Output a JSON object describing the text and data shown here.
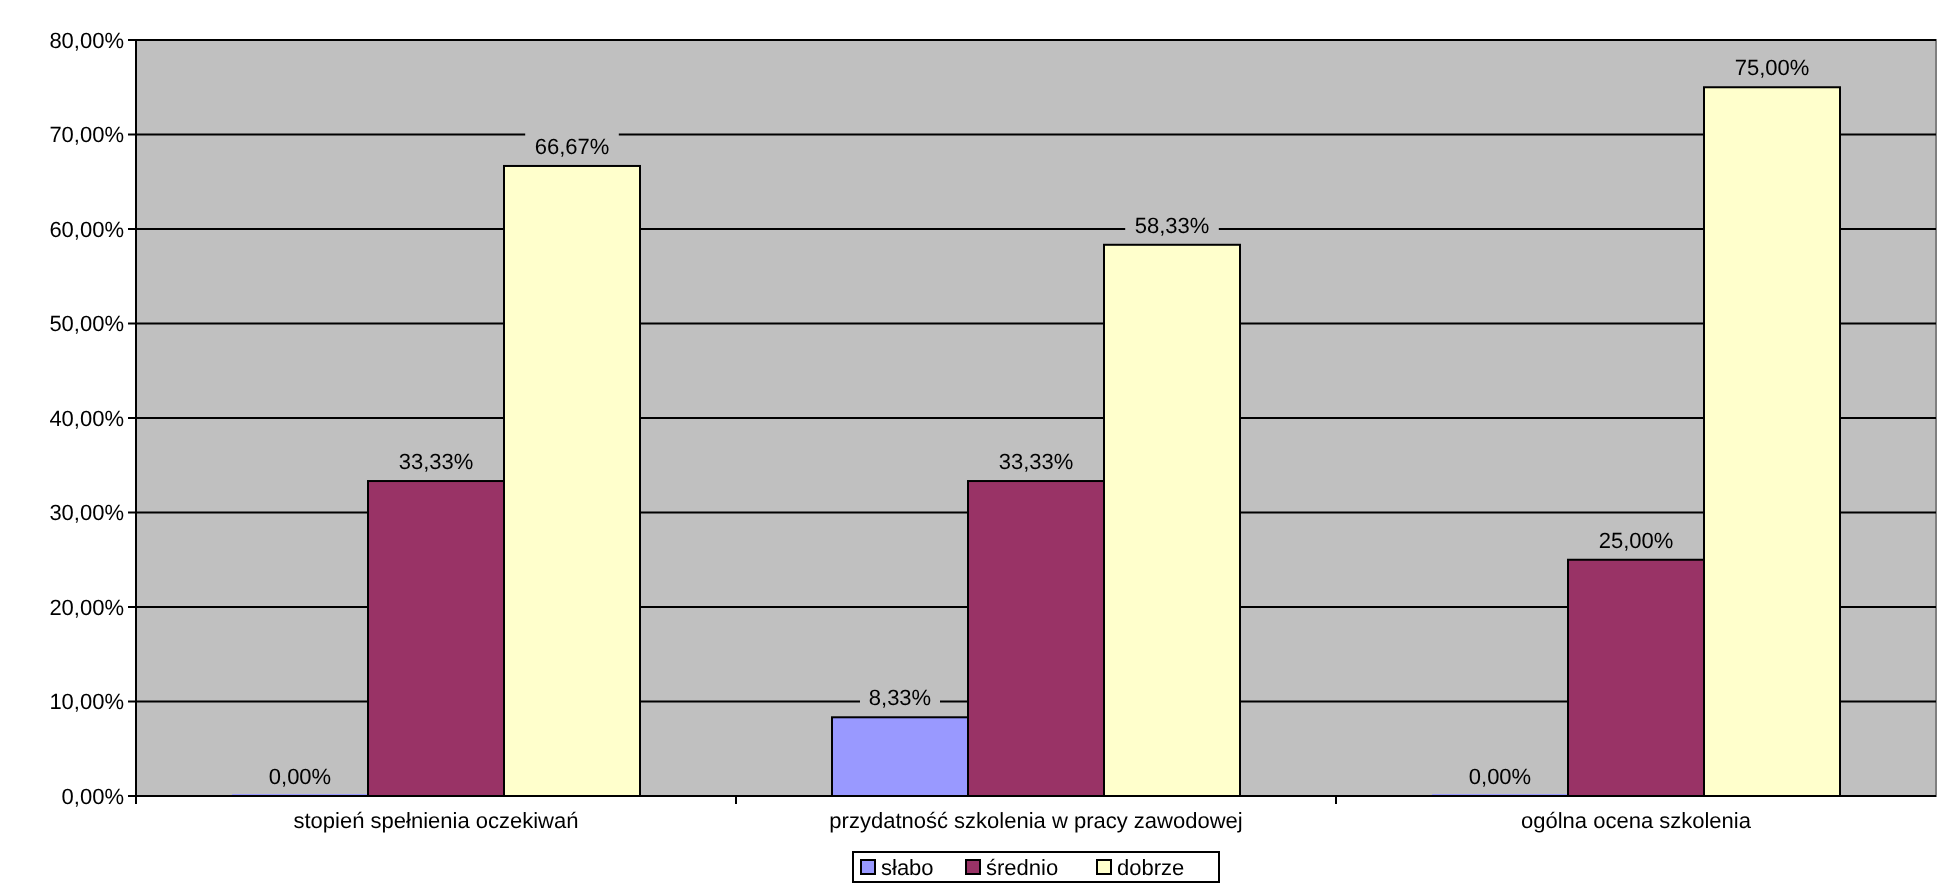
{
  "chart_data": {
    "type": "bar",
    "categories": [
      "stopień spełnienia oczekiwań",
      "przydatność szkolenia w pracy zawodowej",
      "ogólna ocena szkolenia"
    ],
    "series": [
      {
        "name": "słabo",
        "color": "#9999ff",
        "values": [
          0,
          8.33,
          0
        ],
        "value_labels": [
          "0,00%",
          "8,33%",
          "0,00%"
        ]
      },
      {
        "name": "średnio",
        "color": "#993366",
        "values": [
          33.33,
          33.33,
          25
        ],
        "value_labels": [
          "33,33%",
          "33,33%",
          "25,00%"
        ]
      },
      {
        "name": "dobrze",
        "color": "#ffffcc",
        "values": [
          66.67,
          58.33,
          75
        ],
        "value_labels": [
          "66,67%",
          "58,33%",
          "75,00%"
        ]
      }
    ],
    "ylim": [
      0,
      80
    ],
    "yticks": [
      {
        "value": 0,
        "label": "0,00%"
      },
      {
        "value": 10,
        "label": "10,00%"
      },
      {
        "value": 20,
        "label": "20,00%"
      },
      {
        "value": 30,
        "label": "30,00%"
      },
      {
        "value": 40,
        "label": "40,00%"
      },
      {
        "value": 50,
        "label": "50,00%"
      },
      {
        "value": 60,
        "label": "60,00%"
      },
      {
        "value": 70,
        "label": "70,00%"
      },
      {
        "value": 80,
        "label": "80,00%"
      }
    ],
    "grid": "y",
    "legend": "bottom"
  }
}
